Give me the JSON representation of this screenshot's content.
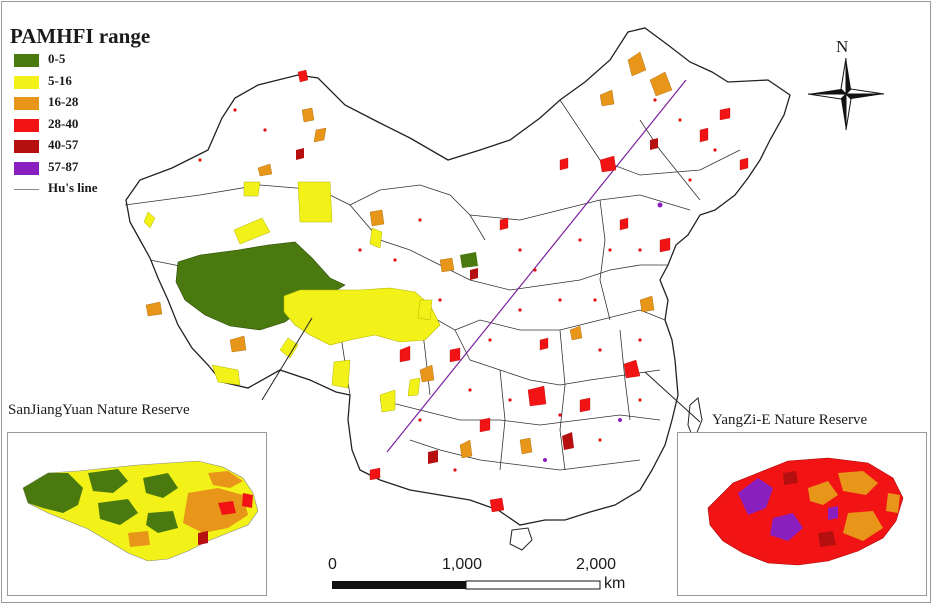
{
  "legend": {
    "title": "PAMHFI range",
    "items": [
      {
        "label": "0-5",
        "color": "#4a7a0f"
      },
      {
        "label": "5-16",
        "color": "#f2f218"
      },
      {
        "label": "16-28",
        "color": "#e8961a"
      },
      {
        "label": "28-40",
        "color": "#f21414"
      },
      {
        "label": "40-57",
        "color": "#b50f0f"
      },
      {
        "label": "57-87",
        "color": "#8a1fbf"
      }
    ],
    "hu_line_label": "Hu's line"
  },
  "callouts": {
    "sanjiangyuan": "SanJiangYuan Nature Reserve",
    "yangzi": "YangZi-E Nature Reserve"
  },
  "compass": {
    "label": "N",
    "icon": "north-arrow-compass-icon"
  },
  "scale_bar": {
    "ticks": [
      "0",
      "1,000",
      "2,000"
    ],
    "unit": "km"
  }
}
